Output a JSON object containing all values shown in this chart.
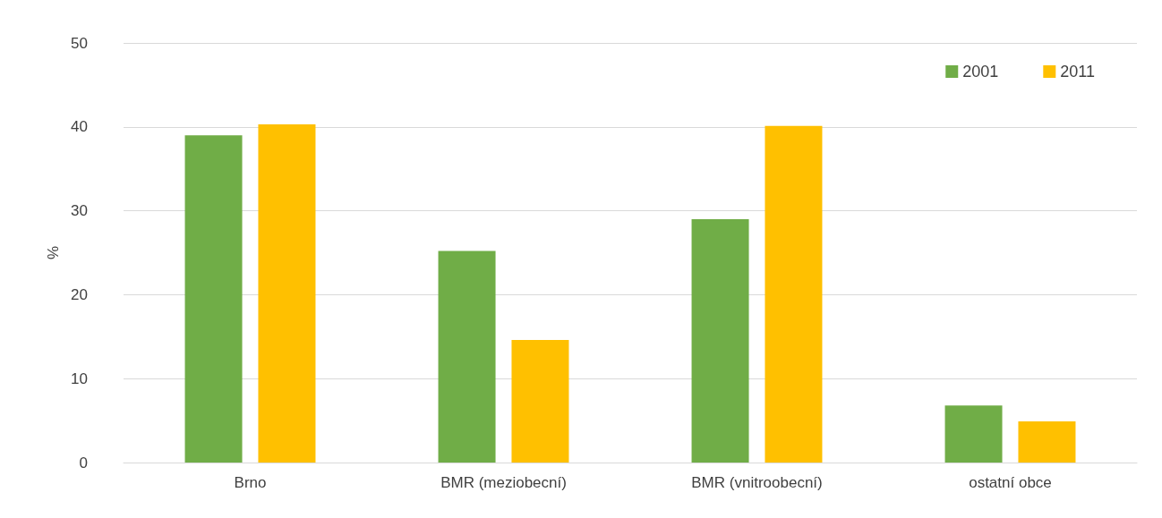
{
  "chart_data": {
    "type": "bar",
    "ylabel": "%",
    "categories": [
      "Brno",
      "BMR (meziobecní)",
      "BMR (vnitroobecní)",
      "ostatní obce"
    ],
    "series": [
      {
        "name": "2001",
        "color": "#70ad47",
        "values": [
          39.0,
          25.2,
          29.0,
          6.8
        ]
      },
      {
        "name": "2011",
        "color": "#ffc000",
        "values": [
          40.3,
          14.6,
          40.1,
          4.9
        ]
      }
    ],
    "ylim": [
      0,
      50
    ],
    "yticks": [
      0,
      10,
      20,
      30,
      40,
      50
    ],
    "grid": "y",
    "legend": "top right"
  }
}
